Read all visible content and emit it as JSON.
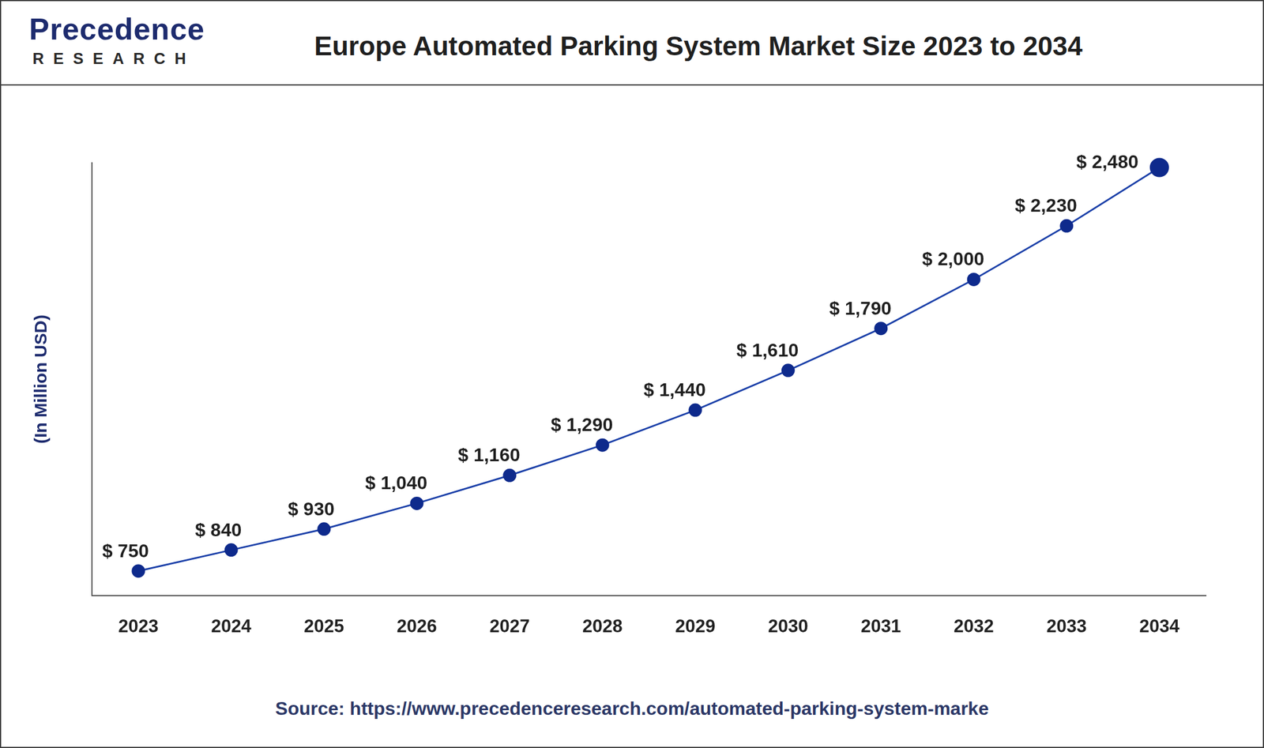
{
  "header": {
    "logo": "Precedence",
    "logo_sub": "RESEARCH"
  },
  "chart_data": {
    "type": "line",
    "title": "Europe Automated Parking System Market Size 2023 to 2034",
    "y_label": "(In Million USD)",
    "categories": [
      "2023",
      "2024",
      "2025",
      "2026",
      "2027",
      "2028",
      "2029",
      "2030",
      "2031",
      "2032",
      "2033",
      "2034"
    ],
    "values": [
      750,
      840,
      930,
      1040,
      1160,
      1290,
      1440,
      1610,
      1790,
      2000,
      2230,
      2480
    ],
    "value_labels": [
      "$ 750",
      "$ 840",
      "$ 930",
      "$ 1,040",
      "$ 1,160",
      "$ 1,290",
      "$ 1,440",
      "$ 1,610",
      "$ 1,790",
      "$ 2,000",
      "$ 2,230",
      "$ 2,480"
    ],
    "color": "#1a3fa8",
    "marker": "circle",
    "ylim": [
      645,
      2500
    ],
    "grid": false,
    "data_labels": true,
    "tick_labels": "x"
  },
  "footer": {
    "source": "Source: https://www.precedenceresearch.com/automated-parking-system-marke"
  }
}
